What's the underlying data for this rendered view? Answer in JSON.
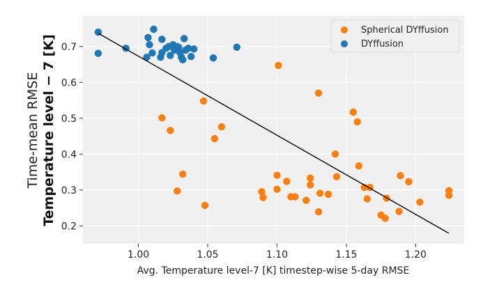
{
  "chart_data": {
    "type": "scatter",
    "xlabel": "Avg. Temperature level-7 [K] timestep-wise 5-day RMSE",
    "ylabel_line1": "Time-mean RMSE",
    "ylabel_line2": "Temperature level − 7 [K]",
    "xlim": [
      0.96,
      1.235
    ],
    "ylim": [
      0.15,
      0.785
    ],
    "xticks": [
      "1.00",
      "1.05",
      "1.10",
      "1.15",
      "1.20"
    ],
    "xtick_values": [
      1.0,
      1.05,
      1.1,
      1.15,
      1.2
    ],
    "yticks": [
      "0.2",
      "0.3",
      "0.4",
      "0.5",
      "0.6",
      "0.7"
    ],
    "ytick_values": [
      0.2,
      0.3,
      0.4,
      0.5,
      0.6,
      0.7
    ],
    "grid": true,
    "legend_position": "top-right",
    "series": [
      {
        "name": "Spherical DYffusion",
        "color": "#ff7f0e",
        "points": [
          [
            1.101,
            0.647
          ],
          [
            1.13,
            0.57
          ],
          [
            1.047,
            0.548
          ],
          [
            1.155,
            0.517
          ],
          [
            1.158,
            0.49
          ],
          [
            1.017,
            0.501
          ],
          [
            1.023,
            0.466
          ],
          [
            1.06,
            0.476
          ],
          [
            1.055,
            0.443
          ],
          [
            1.142,
            0.4
          ],
          [
            1.159,
            0.367
          ],
          [
            1.032,
            0.344
          ],
          [
            1.1,
            0.341
          ],
          [
            1.143,
            0.337
          ],
          [
            1.124,
            0.333
          ],
          [
            1.189,
            0.34
          ],
          [
            1.107,
            0.324
          ],
          [
            1.195,
            0.323
          ],
          [
            1.124,
            0.314
          ],
          [
            1.163,
            0.307
          ],
          [
            1.167,
            0.307
          ],
          [
            1.028,
            0.297
          ],
          [
            1.089,
            0.295
          ],
          [
            1.1,
            0.302
          ],
          [
            1.224,
            0.298
          ],
          [
            1.131,
            0.291
          ],
          [
            1.137,
            0.288
          ],
          [
            1.09,
            0.279
          ],
          [
            1.11,
            0.281
          ],
          [
            1.113,
            0.281
          ],
          [
            1.165,
            0.275
          ],
          [
            1.121,
            0.271
          ],
          [
            1.179,
            0.277
          ],
          [
            1.224,
            0.285
          ],
          [
            1.203,
            0.266
          ],
          [
            1.048,
            0.257
          ],
          [
            1.188,
            0.24
          ],
          [
            1.13,
            0.239
          ],
          [
            1.175,
            0.23
          ],
          [
            1.178,
            0.221
          ]
        ]
      },
      {
        "name": "DYffusion",
        "color": "#1f77b4",
        "points": [
          [
            0.971,
            0.74
          ],
          [
            0.971,
            0.681
          ],
          [
            0.991,
            0.695
          ],
          [
            1.006,
            0.67
          ],
          [
            1.007,
            0.725
          ],
          [
            1.008,
            0.705
          ],
          [
            1.01,
            0.682
          ],
          [
            1.011,
            0.748
          ],
          [
            1.016,
            0.67
          ],
          [
            1.017,
            0.72
          ],
          [
            1.017,
            0.683
          ],
          [
            1.02,
            0.695
          ],
          [
            1.022,
            0.7
          ],
          [
            1.023,
            0.675
          ],
          [
            1.025,
            0.705
          ],
          [
            1.026,
            0.69
          ],
          [
            1.028,
            0.7
          ],
          [
            1.029,
            0.698
          ],
          [
            1.03,
            0.683
          ],
          [
            1.031,
            0.67
          ],
          [
            1.032,
            0.663
          ],
          [
            1.033,
            0.722
          ],
          [
            1.034,
            0.69
          ],
          [
            1.036,
            0.695
          ],
          [
            1.038,
            0.672
          ],
          [
            1.04,
            0.693
          ],
          [
            1.054,
            0.668
          ],
          [
            1.071,
            0.698
          ]
        ]
      }
    ],
    "fit_line": {
      "x": [
        0.971,
        1.224
      ],
      "y": [
        0.737,
        0.179
      ],
      "color": "#000000"
    }
  }
}
